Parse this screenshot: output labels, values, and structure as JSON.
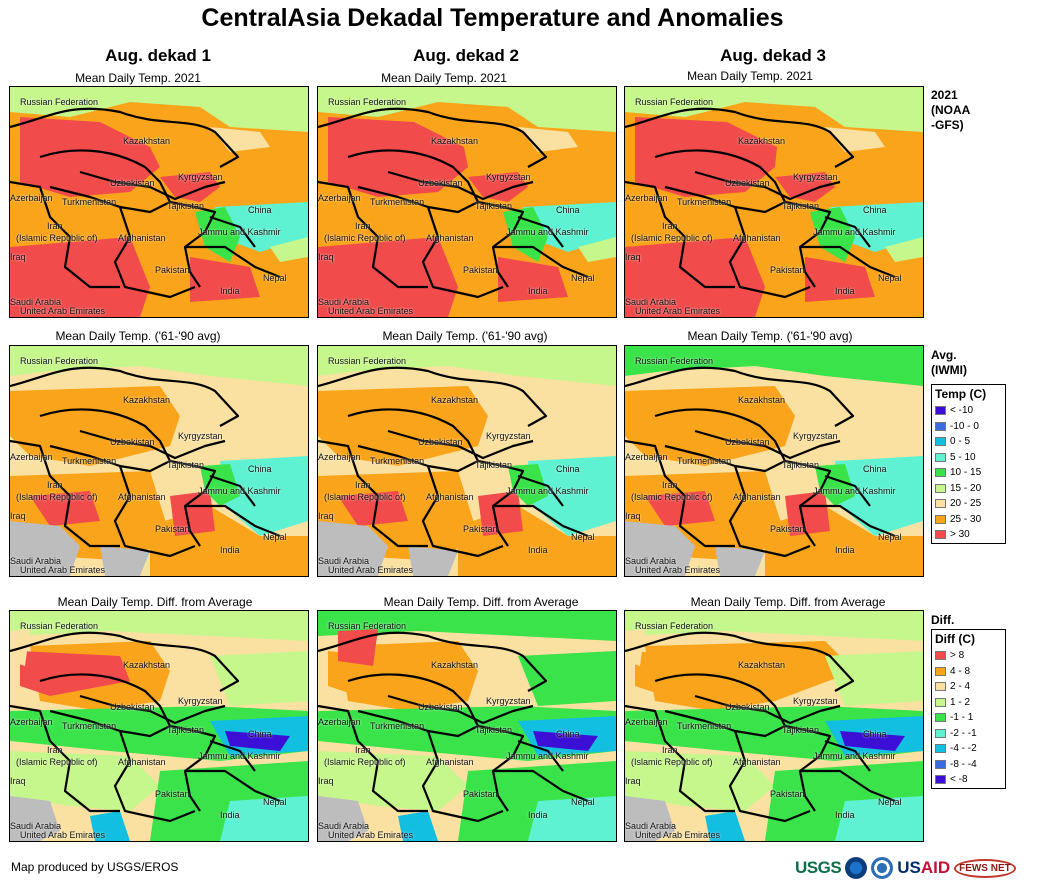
{
  "title": "CentralAsia Dekadal Temperature and Anomalies",
  "columns": [
    "Aug. dekad 1",
    "Aug. dekad 2",
    "Aug. dekad 3"
  ],
  "row_titles": [
    "Mean Daily Temp. 2021",
    "Mean Daily Temp. ('61-'90 avg)",
    "Mean Daily Temp. Diff. from Average"
  ],
  "side_headers": [
    "2021\n(NOAA\n-GFS)",
    "Avg.\n(IWMI)",
    "Diff."
  ],
  "place_labels": [
    "Russian Federation",
    "Kazakhstan",
    "Uzbekistan",
    "Kyrgyzstan",
    "Azerbaijan",
    "Turkmenistan",
    "Tajikistan",
    "China",
    "Iran",
    "(Islamic Republic of)",
    "Afghanistan",
    "Jammu and Kashmir",
    "Iraq",
    "Pakistan",
    "Nepal",
    "India",
    "Saudi Arabia",
    "United Arab Emirates"
  ],
  "temp_legend": {
    "title": "Temp (C)",
    "items": [
      {
        "label": "< -10",
        "color": "#3b0fd6"
      },
      {
        "label": "-10 - 0",
        "color": "#3a6be0"
      },
      {
        "label": "0 - 5",
        "color": "#13bfe0"
      },
      {
        "label": "5 - 10",
        "color": "#5ef2d2"
      },
      {
        "label": "10 - 15",
        "color": "#3be34b"
      },
      {
        "label": "15 - 20",
        "color": "#c6f78c"
      },
      {
        "label": "20 - 25",
        "color": "#fae1a2"
      },
      {
        "label": "25 - 30",
        "color": "#f9a41a"
      },
      {
        "label": "> 30",
        "color": "#f14b4b"
      }
    ]
  },
  "diff_legend": {
    "title": "Diff (C)",
    "items": [
      {
        "label": "> 8",
        "color": "#f14b4b"
      },
      {
        "label": "4 - 8",
        "color": "#f9a41a"
      },
      {
        "label": "2 - 4",
        "color": "#fae1a2"
      },
      {
        "label": "1 - 2",
        "color": "#c6f78c"
      },
      {
        "label": "-1 - 1",
        "color": "#3be34b"
      },
      {
        "label": "-2 - -1",
        "color": "#5ef2d2"
      },
      {
        "label": "-4 - -2",
        "color": "#13bfe0"
      },
      {
        "label": "-8 - -4",
        "color": "#3a6be0"
      },
      {
        "label": "< -8",
        "color": "#3b0fd6"
      }
    ]
  },
  "colors": {
    "no_data": "#bdbdbd",
    "border": "#000000"
  },
  "footer": "Map produced by USGS/EROS",
  "logos": {
    "usgs": "USGS",
    "usaid_a": "US",
    "usaid_b": "AID",
    "fews": "FEWS NET"
  }
}
